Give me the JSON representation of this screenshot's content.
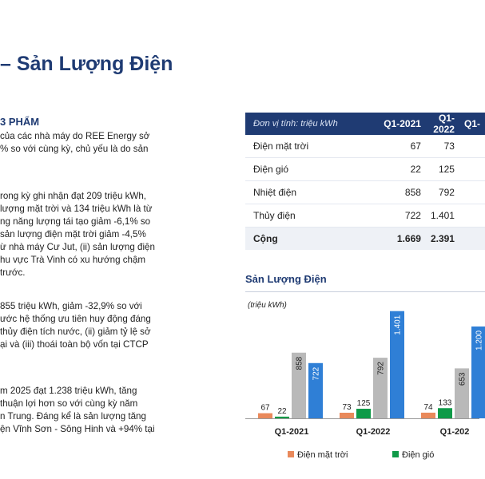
{
  "page_title": "– Sản Lượng Điện",
  "section_heading": "3 PHẨM",
  "paragraphs": [
    {
      "lines": [
        "của các nhà máy do REE Energy sở",
        "% so với cùng kỳ, chủ yếu là do sản"
      ]
    },
    {
      "lines": [
        "rong kỳ ghi nhận đạt 209 triệu kWh,",
        "lượng mặt trời và 134 triệu kWh là từ",
        "ng năng lượng tái tạo giảm -6,1% so",
        "sản lượng điện mặt trời giảm -4,5%",
        "ừ nhà máy Cư Jut, (ii) sản lượng điện",
        "hu vực Trà Vinh có xu hướng chậm",
        "trước."
      ]
    },
    {
      "lines": [
        "855 triệu kWh, giảm -32,9% so với",
        "ước hệ thống ưu tiên huy động đáng",
        "thủy điện tích nước, (ii) giảm tỷ lệ sở",
        "ại và (iii) thoái toàn bộ vốn tại CTCP"
      ]
    },
    {
      "lines": [
        "m 2025 đạt 1.238 triệu kWh, tăng",
        "thuận lợi hơn so với cùng kỳ năm",
        "n Trung. Đáng kể là sản lượng tăng",
        "ện Vĩnh Sơn - Sông Hinh và +94% tại"
      ]
    }
  ],
  "table": {
    "unit_label": "Đơn vị tính: triệu kWh",
    "columns": [
      "Q1-2021",
      "Q1-2022",
      "Q1-"
    ],
    "rows": [
      {
        "label": "Điện mặt trời",
        "values": [
          "67",
          "73",
          ""
        ]
      },
      {
        "label": "Điện gió",
        "values": [
          "22",
          "125",
          ""
        ]
      },
      {
        "label": "Nhiệt điện",
        "values": [
          "858",
          "792",
          ""
        ]
      },
      {
        "label": "Thủy điện",
        "values": [
          "722",
          "1.401",
          ""
        ]
      }
    ],
    "total": {
      "label": "Cộng",
      "values": [
        "1.669",
        "2.391",
        ""
      ]
    }
  },
  "chart_data": {
    "type": "bar",
    "title": "Sản Lượng Điện",
    "ylabel": "(triệu kWh)",
    "categories": [
      "Q1-2021",
      "Q1-2022",
      "Q1-202"
    ],
    "series": [
      {
        "name": "Điện mặt trời",
        "values": [
          67,
          73,
          74
        ]
      },
      {
        "name": "Điện gió",
        "values": [
          22,
          125,
          133
        ]
      },
      {
        "name": "Nhiệt điện",
        "values": [
          858,
          792,
          653
        ]
      },
      {
        "name": "Thủy điện",
        "values": [
          722,
          1401,
          1200
        ]
      }
    ],
    "data_labels": [
      [
        "67",
        "22",
        "858",
        "722"
      ],
      [
        "73",
        "125",
        "792",
        "1.401"
      ],
      [
        "74",
        "133",
        "653",
        "1.200"
      ]
    ],
    "colors": {
      "Điện mặt trời": "#e9895b",
      "Điện gió": "#0f9a48",
      "Nhiệt điện": "#b9b9b9",
      "Thủy điện": "#2f7fd6"
    },
    "grid": false,
    "legend_position": "bottom",
    "legend_entries": [
      "Điện mặt trời",
      "Điện gió"
    ]
  }
}
